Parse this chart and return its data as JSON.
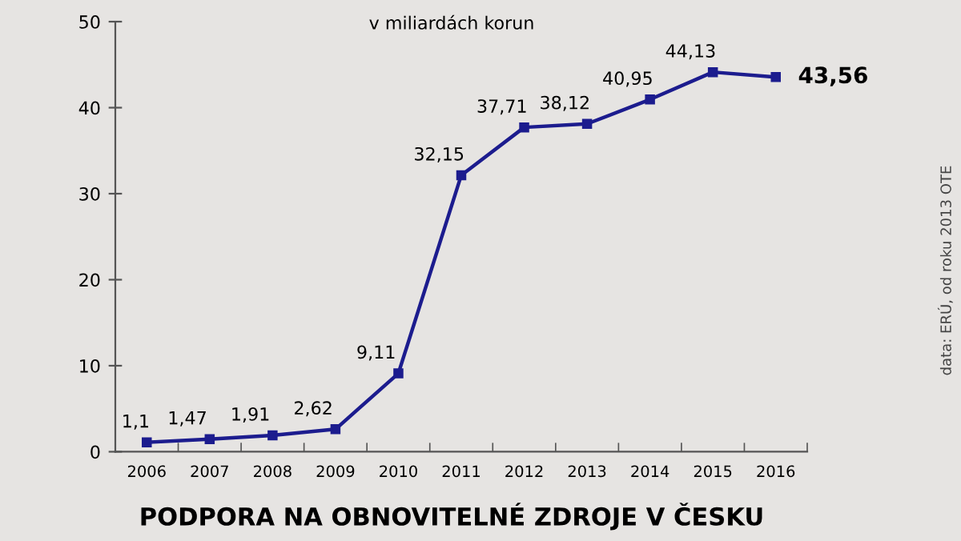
{
  "chart_data": {
    "type": "line",
    "title": "PODPORA NA OBNOVITELNÉ ZDROJE V ČESKU",
    "subtitle": "v miliardách korun",
    "annotations": [
      "data: ERÚ, od roku 2013 OTE"
    ],
    "categories": [
      "2006",
      "2007",
      "2008",
      "2009",
      "2010",
      "2011",
      "2012",
      "2013",
      "2014",
      "2015",
      "2016"
    ],
    "series": [
      {
        "color": "#1c1c8e",
        "values": [
          1.1,
          1.47,
          1.91,
          2.62,
          9.11,
          32.15,
          37.71,
          38.12,
          40.95,
          44.13,
          43.56
        ],
        "value_labels": [
          "1,1",
          "1,47",
          "1,91",
          "2,62",
          "9,11",
          "32,15",
          "37,71",
          "38,12",
          "40,95",
          "44,13",
          "43,56"
        ]
      }
    ],
    "ylim": [
      0,
      50
    ],
    "yticks": [
      0,
      10,
      20,
      30,
      40,
      50
    ],
    "grid": false,
    "legend": false,
    "marker": "square",
    "line_style": "solid"
  }
}
